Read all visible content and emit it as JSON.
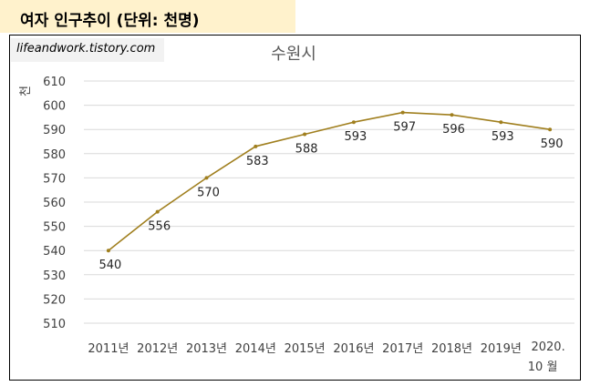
{
  "header": {
    "title": "여자 인구추이 (단위: 천명)"
  },
  "watermark": {
    "text": "lifeandwork.tistory.com"
  },
  "chart_data": {
    "type": "line",
    "title": "수원시",
    "ylabel": "천",
    "xlabel": "",
    "categories": [
      "2011년",
      "2012년",
      "2013년",
      "2014년",
      "2015년",
      "2016년",
      "2017년",
      "2018년",
      "2019년",
      "2020. 10 월"
    ],
    "series": [
      {
        "values": [
          540,
          556,
          570,
          583,
          588,
          593,
          597,
          596,
          593,
          590
        ],
        "color": "#a07f1e"
      }
    ],
    "data_labels": [
      "540",
      "556",
      "570",
      "583",
      "588",
      "593",
      "597",
      "596",
      "593",
      "590"
    ],
    "ylim": [
      510,
      610
    ],
    "yticks": [
      510,
      520,
      530,
      540,
      550,
      560,
      570,
      580,
      590,
      600,
      610
    ],
    "grid": true,
    "legend": "none"
  }
}
